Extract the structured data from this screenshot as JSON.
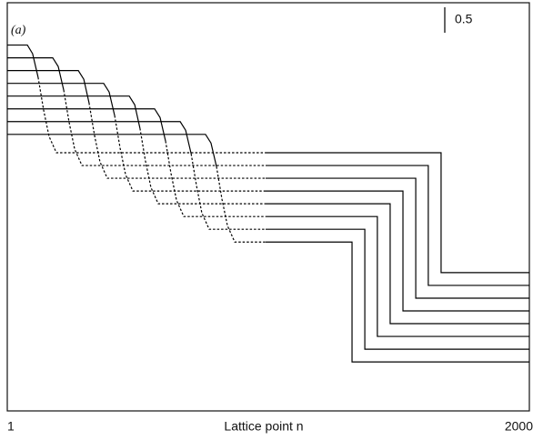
{
  "chart_data": {
    "type": "line",
    "panel_label": "(a)",
    "xlabel": "Lattice point n",
    "xlim": [
      1,
      2000
    ],
    "xticks": [
      1,
      2000
    ],
    "ylim": [
      0,
      8
    ],
    "scale_bar": 0.5,
    "color": "#000000",
    "series": [
      {
        "style": "solid",
        "x": [
          1,
          78,
          98,
          119
        ],
        "values": [
          7.17,
          7.17,
          7.0,
          6.54
        ]
      },
      {
        "style": "dashed",
        "x": [
          119,
          140,
          161,
          189,
          990
        ],
        "values": [
          6.54,
          5.9,
          5.38,
          5.06,
          5.06
        ]
      },
      {
        "style": "solid",
        "x": [
          990,
          1662,
          1662,
          2000
        ],
        "values": [
          5.06,
          5.06,
          2.71,
          2.71
        ]
      },
      {
        "style": "solid",
        "x": [
          1,
          175,
          196,
          217
        ],
        "values": [
          6.92,
          6.92,
          6.75,
          6.29
        ]
      },
      {
        "style": "dashed",
        "x": [
          217,
          238,
          259,
          287,
          990
        ],
        "values": [
          6.29,
          5.65,
          5.13,
          4.81,
          4.81
        ]
      },
      {
        "style": "solid",
        "x": [
          990,
          1613,
          1613,
          2000
        ],
        "values": [
          4.81,
          4.81,
          2.46,
          2.46
        ]
      },
      {
        "style": "solid",
        "x": [
          1,
          273,
          294,
          314
        ],
        "values": [
          6.67,
          6.67,
          6.5,
          6.04
        ]
      },
      {
        "style": "dashed",
        "x": [
          314,
          335,
          356,
          384,
          990
        ],
        "values": [
          6.04,
          5.4,
          4.88,
          4.56,
          4.56
        ]
      },
      {
        "style": "solid",
        "x": [
          990,
          1565,
          1565,
          2000
        ],
        "values": [
          4.56,
          4.56,
          2.21,
          2.21
        ]
      },
      {
        "style": "solid",
        "x": [
          1,
          370,
          391,
          412
        ],
        "values": [
          6.42,
          6.42,
          6.25,
          5.79
        ]
      },
      {
        "style": "dashed",
        "x": [
          412,
          433,
          454,
          482,
          990
        ],
        "values": [
          5.79,
          5.15,
          4.63,
          4.31,
          4.31
        ]
      },
      {
        "style": "solid",
        "x": [
          990,
          1516,
          1516,
          2000
        ],
        "values": [
          4.31,
          4.31,
          1.96,
          1.96
        ]
      },
      {
        "style": "solid",
        "x": [
          1,
          468,
          489,
          509
        ],
        "values": [
          6.17,
          6.17,
          6.0,
          5.54
        ]
      },
      {
        "style": "dashed",
        "x": [
          509,
          530,
          551,
          579,
          990
        ],
        "values": [
          5.54,
          4.9,
          4.38,
          4.06,
          4.06
        ]
      },
      {
        "style": "solid",
        "x": [
          990,
          1467,
          1467,
          2000
        ],
        "values": [
          4.06,
          4.06,
          1.71,
          1.71
        ]
      },
      {
        "style": "solid",
        "x": [
          1,
          565,
          586,
          607
        ],
        "values": [
          5.92,
          5.92,
          5.75,
          5.29
        ]
      },
      {
        "style": "dashed",
        "x": [
          607,
          628,
          649,
          677,
          990
        ],
        "values": [
          5.29,
          4.65,
          4.13,
          3.81,
          3.81
        ]
      },
      {
        "style": "solid",
        "x": [
          990,
          1418,
          1418,
          2000
        ],
        "values": [
          3.81,
          3.81,
          1.46,
          1.46
        ]
      },
      {
        "style": "solid",
        "x": [
          1,
          663,
          684,
          705
        ],
        "values": [
          5.67,
          5.67,
          5.5,
          5.04
        ]
      },
      {
        "style": "dashed",
        "x": [
          705,
          726,
          746,
          774,
          990
        ],
        "values": [
          5.04,
          4.4,
          3.88,
          3.56,
          3.56
        ]
      },
      {
        "style": "solid",
        "x": [
          990,
          1370,
          1370,
          2000
        ],
        "values": [
          3.56,
          3.56,
          1.21,
          1.21
        ]
      },
      {
        "style": "solid",
        "x": [
          1,
          760,
          781,
          802
        ],
        "values": [
          5.42,
          5.42,
          5.25,
          4.79
        ]
      },
      {
        "style": "dashed",
        "x": [
          802,
          823,
          844,
          872,
          990
        ],
        "values": [
          4.79,
          4.15,
          3.63,
          3.31,
          3.31
        ]
      },
      {
        "style": "solid",
        "x": [
          990,
          1321,
          1321,
          2000
        ],
        "values": [
          3.31,
          3.31,
          0.96,
          0.96
        ]
      }
    ]
  }
}
